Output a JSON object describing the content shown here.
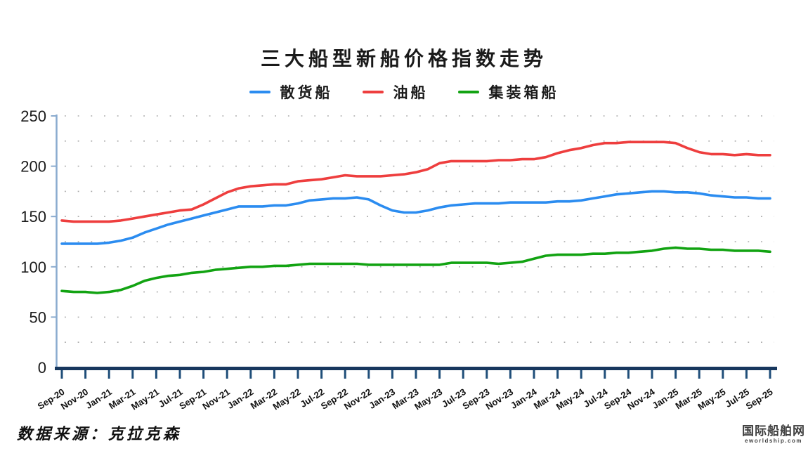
{
  "title": "三大船型新船价格指数走势",
  "legend": [
    {
      "label": "散货船",
      "color": "#2b8cf0"
    },
    {
      "label": "油船",
      "color": "#ee3e3e"
    },
    {
      "label": "集装箱船",
      "color": "#12a312"
    }
  ],
  "chart_data": {
    "type": "line",
    "title": "三大船型新船价格指数走势",
    "xlabel": "",
    "ylabel": "",
    "ylim": [
      0,
      250
    ],
    "yticks": [
      0,
      50,
      100,
      150,
      200,
      250
    ],
    "grid": "dotted horizontal rows every 25 units",
    "legend_position": "top",
    "x_label_every": 2,
    "categories": [
      "Sep-20",
      "Oct-20",
      "Nov-20",
      "Dec-20",
      "Jan-21",
      "Feb-21",
      "Mar-21",
      "Apr-21",
      "May-21",
      "Jun-21",
      "Jul-21",
      "Aug-21",
      "Sep-21",
      "Oct-21",
      "Nov-21",
      "Dec-21",
      "Jan-22",
      "Feb-22",
      "Mar-22",
      "Apr-22",
      "May-22",
      "Jun-22",
      "Jul-22",
      "Aug-22",
      "Sep-22",
      "Oct-22",
      "Nov-22",
      "Dec-22",
      "Jan-23",
      "Feb-23",
      "Mar-23",
      "Apr-23",
      "May-23",
      "Jun-23",
      "Jul-23",
      "Aug-23",
      "Sep-23",
      "Oct-23",
      "Nov-23",
      "Dec-23",
      "Jan-24",
      "Feb-24",
      "Mar-24",
      "Apr-24",
      "May-24",
      "Jun-24",
      "Jul-24",
      "Aug-24",
      "Sep-24",
      "Oct-24",
      "Nov-24",
      "Dec-24",
      "Jan-25",
      "Feb-25",
      "Mar-25",
      "Apr-25",
      "May-25",
      "Jun-25",
      "Jul-25",
      "Aug-25",
      "Sep-25"
    ],
    "series": [
      {
        "id": "bulk-carrier",
        "name": "散货船",
        "color": "#2b8cf0",
        "values": [
          123,
          123,
          123,
          123,
          124,
          126,
          129,
          134,
          138,
          142,
          145,
          148,
          151,
          154,
          157,
          160,
          160,
          160,
          161,
          161,
          163,
          166,
          167,
          168,
          168,
          169,
          167,
          161,
          156,
          154,
          154,
          156,
          159,
          161,
          162,
          163,
          163,
          163,
          164,
          164,
          164,
          164,
          165,
          165,
          166,
          168,
          170,
          172,
          173,
          174,
          175,
          175,
          174,
          174,
          173,
          171,
          170,
          169,
          169,
          168,
          168
        ]
      },
      {
        "id": "oil-tanker",
        "name": "油船",
        "color": "#ee3e3e",
        "values": [
          146,
          145,
          145,
          145,
          145,
          146,
          148,
          150,
          152,
          154,
          156,
          157,
          162,
          168,
          174,
          178,
          180,
          181,
          182,
          182,
          185,
          186,
          187,
          189,
          191,
          190,
          190,
          190,
          191,
          192,
          194,
          197,
          203,
          205,
          205,
          205,
          205,
          206,
          206,
          207,
          207,
          209,
          213,
          216,
          218,
          221,
          223,
          223,
          224,
          224,
          224,
          224,
          223,
          218,
          214,
          212,
          212,
          211,
          212,
          211,
          211
        ]
      },
      {
        "id": "container-ship",
        "name": "集装箱船",
        "color": "#12a312",
        "values": [
          76,
          75,
          75,
          74,
          75,
          77,
          81,
          86,
          89,
          91,
          92,
          94,
          95,
          97,
          98,
          99,
          100,
          100,
          101,
          101,
          102,
          103,
          103,
          103,
          103,
          103,
          102,
          102,
          102,
          102,
          102,
          102,
          102,
          104,
          104,
          104,
          104,
          103,
          104,
          105,
          108,
          111,
          112,
          112,
          112,
          113,
          113,
          114,
          114,
          115,
          116,
          118,
          119,
          118,
          118,
          117,
          117,
          116,
          116,
          116,
          115
        ]
      }
    ]
  },
  "axis_colors": {
    "y_axis": "#8aabcf",
    "x_axis": "#17375e",
    "x_tick": "#1f4e79",
    "grid_dot": "#a8a8a8",
    "tick_label": "#1a1a1a"
  },
  "footer": {
    "source": "数据来源：克拉克森"
  },
  "logo": {
    "name": "国际船舶网",
    "domain": "eworldship.com"
  }
}
